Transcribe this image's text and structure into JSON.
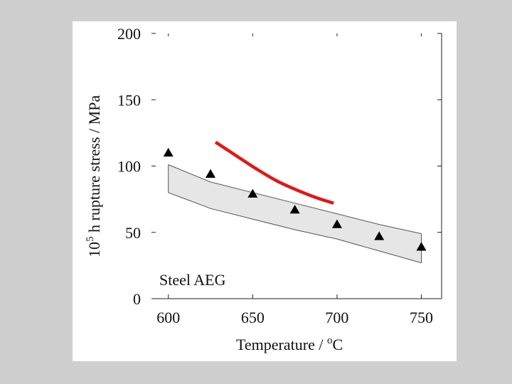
{
  "chart_data": {
    "type": "scatter",
    "title": "",
    "xlabel": {
      "main": "Temperature / ",
      "sup": "o",
      "unit": "C"
    },
    "ylabel": {
      "pre": "10",
      "sup": "5",
      "post": " h rupture stress / MPa"
    },
    "xlim": [
      590,
      762
    ],
    "ylim": [
      0,
      200
    ],
    "xticks": [
      600,
      650,
      700,
      750
    ],
    "yticks": [
      0,
      50,
      100,
      150,
      200
    ],
    "annotation": "Steel AEG",
    "colors": {
      "curve": "#e01818",
      "band_fill": "#e6e6e6",
      "band_edge": "#555555",
      "markers": "#000000"
    },
    "series": [
      {
        "name": "band-upper",
        "x": [
          600,
          625,
          650,
          675,
          700,
          725,
          750
        ],
        "y": [
          101,
          88,
          80,
          72,
          64,
          56,
          49
        ]
      },
      {
        "name": "band-lower",
        "x": [
          600,
          625,
          650,
          675,
          700,
          725,
          750
        ],
        "y": [
          80,
          68,
          60,
          52,
          45,
          36,
          27
        ]
      },
      {
        "name": "measured",
        "x": [
          600,
          625,
          650,
          675,
          700,
          725,
          750
        ],
        "y": [
          110,
          94,
          79,
          67,
          56,
          47,
          39
        ]
      },
      {
        "name": "predicted",
        "x": [
          628,
          640,
          652,
          664,
          676,
          688,
          698
        ],
        "y": [
          118,
          108,
          98,
          89,
          82,
          76,
          72
        ]
      }
    ]
  }
}
